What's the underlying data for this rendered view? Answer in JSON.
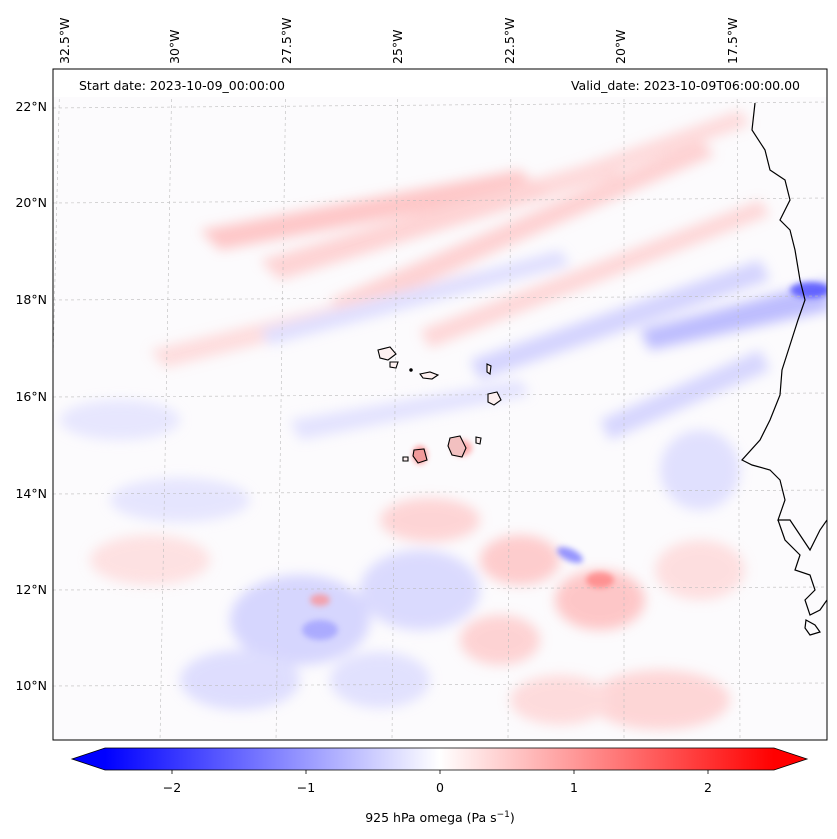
{
  "header": {
    "start_date": "Start date: 2023-10-09_00:00:00",
    "valid_date": "Valid_date: 2023-10-09T06:00:00.00"
  },
  "lon_labels": [
    "32.5°W",
    "30°W",
    "27.5°W",
    "25°W",
    "22.5°W",
    "20°W",
    "17.5°W"
  ],
  "lat_labels": [
    "22°N",
    "20°N",
    "18°N",
    "16°N",
    "14°N",
    "12°N",
    "10°N"
  ],
  "colorbar": {
    "ticks": [
      "−2",
      "−1",
      "0",
      "1",
      "2"
    ],
    "label": "925 hPa omega (Pa s",
    "label_sup": "−1",
    "label_end": ")",
    "min_color": "#0000ff",
    "mid_color": "#ffffff",
    "max_color": "#ff0000"
  }
}
